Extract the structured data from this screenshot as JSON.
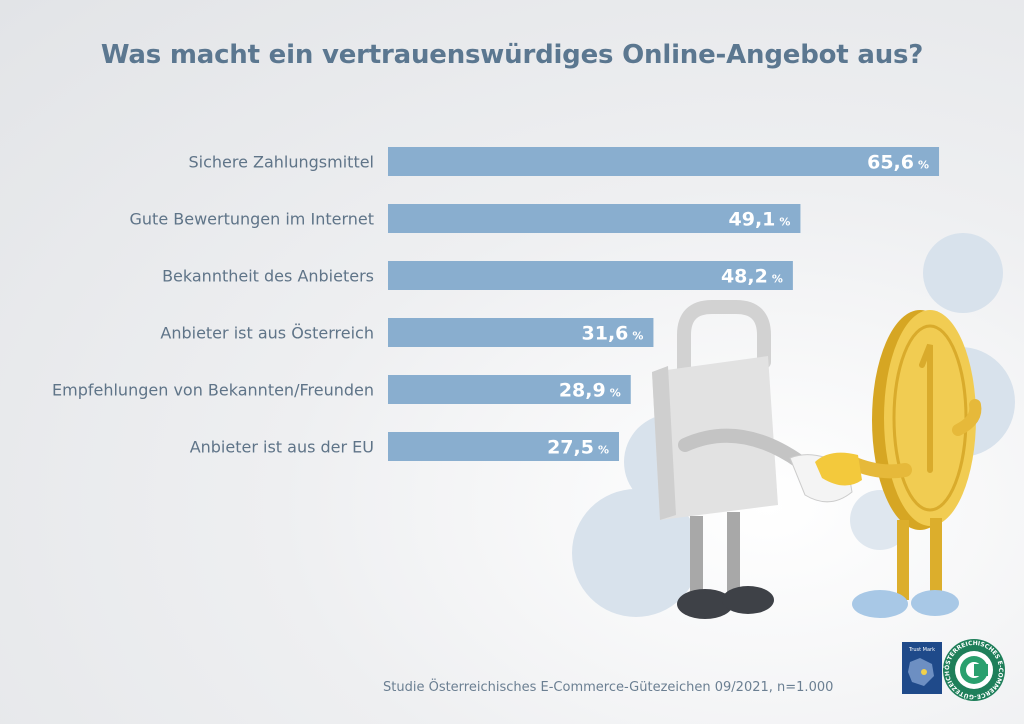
{
  "title": "Was macht ein vertrauenswürdiges Online-Angebot aus?",
  "source": "Studie Österreichisches E-Commerce-Gütezeichen 09/2021, n=1.000",
  "colors": {
    "bar": "#89aecf",
    "label": "#5f7488",
    "value": "#ffffff",
    "title": "#5b7790"
  },
  "logos": {
    "eu_trustmark_text": "Trust Mark",
    "guetezeichen_text": "ÖSTERREICHISCHES E-COMMERCE-GÜTEZEICHEN"
  },
  "chart_data": {
    "type": "bar",
    "orientation": "horizontal",
    "unit": "%",
    "categories": [
      "Sichere Zahlungsmittel",
      "Gute Bewertungen im Internet",
      "Bekanntheit des Anbieters",
      "Anbieter ist aus Österreich",
      "Empfehlungen von Bekannten/Freunden",
      "Anbieter ist aus der EU"
    ],
    "values": [
      65.6,
      49.1,
      48.2,
      31.6,
      28.9,
      27.5
    ],
    "value_labels": [
      "65,6",
      "49,1",
      "48,2",
      "31,6",
      "28,9",
      "27,5"
    ],
    "xlim": [
      0,
      100
    ],
    "grid": false,
    "legend": "none"
  }
}
